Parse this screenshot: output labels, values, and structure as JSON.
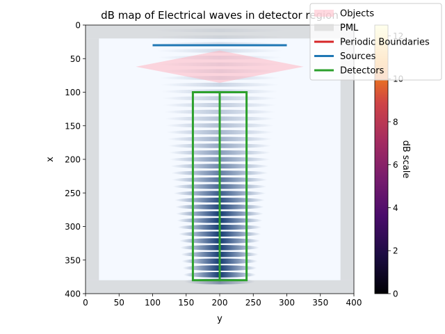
{
  "chart_data": {
    "type": "heatmap",
    "title": "dB map of Electrical waves in detector region",
    "xlabel": "y",
    "ylabel": "x",
    "x_range": [
      0,
      400
    ],
    "y_range": [
      0,
      400
    ],
    "y_inverted": true,
    "x_ticks": [
      "0",
      "50",
      "100",
      "150",
      "200",
      "250",
      "300",
      "350",
      "400"
    ],
    "y_ticks": [
      "0",
      "50",
      "100",
      "150",
      "200",
      "250",
      "300",
      "350",
      "400"
    ],
    "pml_thickness": 20,
    "source": {
      "x": 30,
      "y_from": 100,
      "y_to": 300
    },
    "lens_object": {
      "x_top": 38,
      "x_mid": 62,
      "x_bottom": 86,
      "y_left": 75,
      "y_right": 325
    },
    "detectors": [
      {
        "x_from": 100,
        "x_to": 380,
        "y_from": 160,
        "y_to": 200
      },
      {
        "x_from": 100,
        "x_to": 380,
        "y_from": 200,
        "y_to": 240
      }
    ],
    "field_pattern": {
      "center_y": 200,
      "fringe_count": 38,
      "fringe_x_start": 8,
      "fringe_x_end": 382,
      "focus_x": 335
    },
    "colorbar": {
      "label": "dB scale",
      "range": [
        0,
        12.5
      ],
      "ticks": [
        "0",
        "2",
        "4",
        "6",
        "8",
        "10",
        "12"
      ],
      "colormap": "inferno"
    },
    "legend": {
      "placement": "top-right",
      "entries": [
        {
          "label": "Objects",
          "kind": "patch",
          "color": "#ffc0cb"
        },
        {
          "label": "PML",
          "kind": "patch",
          "color": "#d8d8d8"
        },
        {
          "label": "Periodic Boundaries",
          "kind": "line",
          "color": "#d62728"
        },
        {
          "label": "Sources",
          "kind": "line",
          "color": "#1f77b4"
        },
        {
          "label": "Detectors",
          "kind": "line",
          "color": "#2ca02c"
        }
      ]
    },
    "colors": {
      "background_field": "#f5f9ff",
      "wave_dark": "#08306b",
      "source": "#1f77b4",
      "detector": "#2ca02c",
      "pml": "#c8cacc",
      "object": "#ffb6c1"
    }
  }
}
